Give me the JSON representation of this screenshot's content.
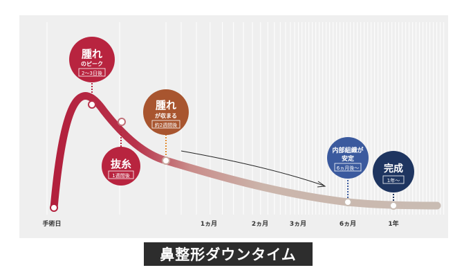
{
  "title": "鼻整形ダウンタイム",
  "axis": {
    "labels": [
      "手術日",
      "1ヵ月",
      "2ヵ月",
      "3ヵ月",
      "6ヵ月",
      "1年"
    ]
  },
  "milestones": [
    {
      "id": "swelling-peak",
      "title": "腫れ",
      "subtitle": "のピーク",
      "period": "2〜3日後",
      "color": "#b8243f"
    },
    {
      "id": "suture-removal",
      "title": "抜糸",
      "subtitle": "",
      "period": "1週間後",
      "color": "#b8243f"
    },
    {
      "id": "swelling-subsides",
      "title": "腫れ",
      "subtitle": "が収まる",
      "period": "約2週間後",
      "color": "#a8552f"
    },
    {
      "id": "internal-stable",
      "title": "内部組織が",
      "subtitle": "安定",
      "period": "6ヵ月後〜",
      "color": "#3b5a9e"
    },
    {
      "id": "complete",
      "title": "完成",
      "subtitle": "",
      "period": "1年〜",
      "color": "#1e3560"
    }
  ],
  "colors": {
    "panel": "#efefef",
    "curve_start": "#b21f3c",
    "curve_mid": "#c98c8a",
    "curve_end": "#c9bcb3"
  }
}
